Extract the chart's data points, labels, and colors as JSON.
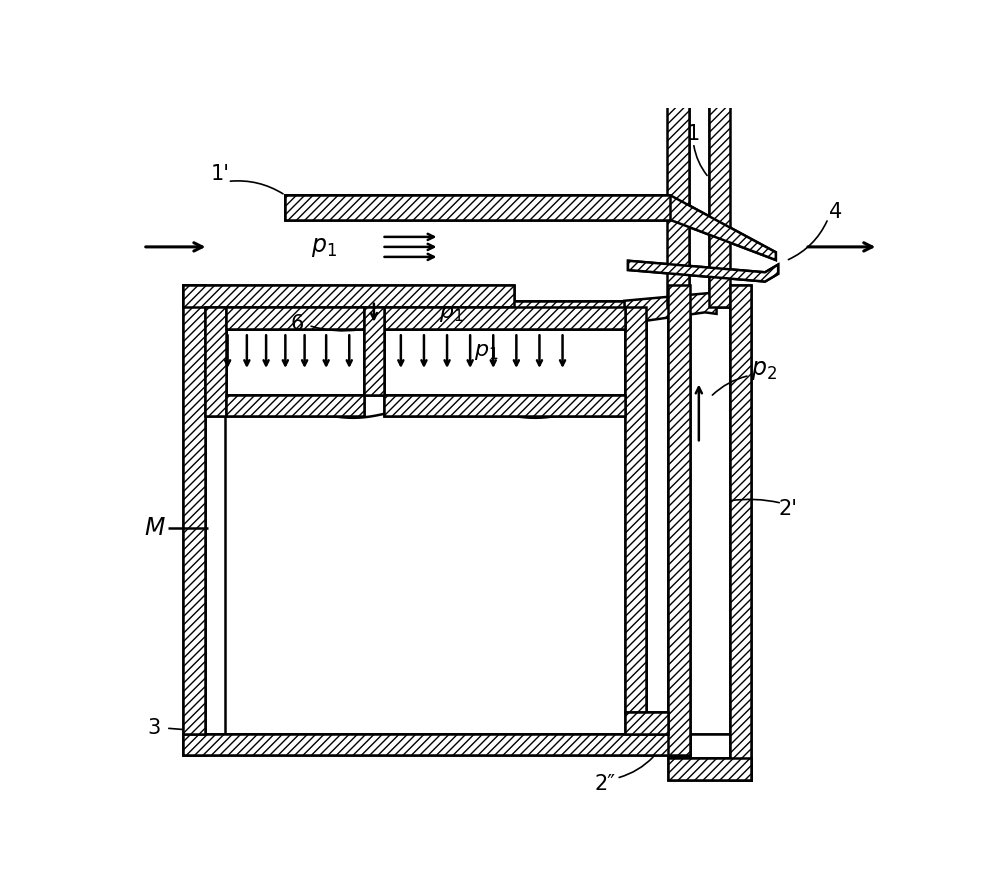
{
  "bg": "#ffffff",
  "lc": "#000000",
  "fw": 10.0,
  "fh": 8.96,
  "dpi": 100
}
